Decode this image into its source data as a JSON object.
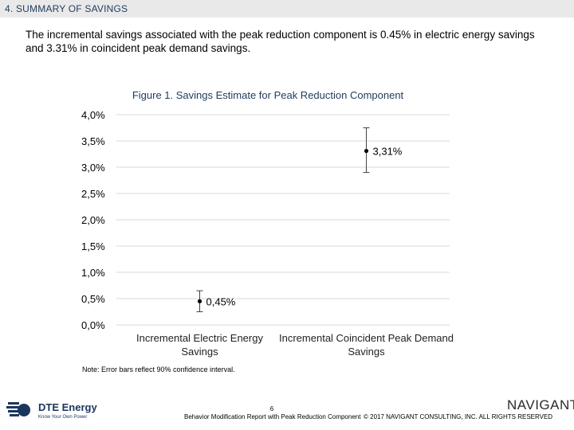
{
  "header": {
    "title": "4. SUMMARY OF SAVINGS"
  },
  "intro_text": "The incremental savings associated with the peak reduction component is 0.45% in electric energy savings and 3.31% in coincident peak demand savings.",
  "chart_data": {
    "type": "scatter",
    "title": "Figure 1. Savings Estimate for Peak Reduction Component",
    "categories": [
      "Incremental Electric Energy Savings",
      "Incremental Coincident Peak Demand Savings"
    ],
    "values": [
      0.45,
      3.31
    ],
    "value_labels": [
      "0,45%",
      "3,31%"
    ],
    "error_low": [
      0.25,
      2.9
    ],
    "error_high": [
      0.65,
      3.75
    ],
    "ylim": [
      0,
      4.0
    ],
    "y_ticks": [
      0,
      0.5,
      1.0,
      1.5,
      2.0,
      2.5,
      3.0,
      3.5,
      4.0
    ],
    "y_tick_labels": [
      "0,0%",
      "0,5%",
      "1,0%",
      "1,5%",
      "2,0%",
      "2,5%",
      "3,0%",
      "3,5%",
      "4,0%"
    ],
    "xlabel": "",
    "ylabel": "",
    "grid": true,
    "grid_color": "#d9d9d9",
    "marker_color": "#000000"
  },
  "note": "Note: Error bars reflect 90% confidence interval.",
  "footer": {
    "page_number": "6",
    "report_title": "Behavior Modification Report with Peak Reduction Component",
    "copyright": "© 2017 NAVIGANT CONSULTING, INC. ALL RIGHTS RESERVED",
    "left_logo_name": "DTE Energy",
    "left_logo_tagline": "Know Your Own Power",
    "right_logo_name": "NAVIGANT"
  },
  "colors": {
    "header_bg": "#e9e9e9",
    "title_blue": "#1f3b5c",
    "dte_blue": "#1b365d"
  }
}
